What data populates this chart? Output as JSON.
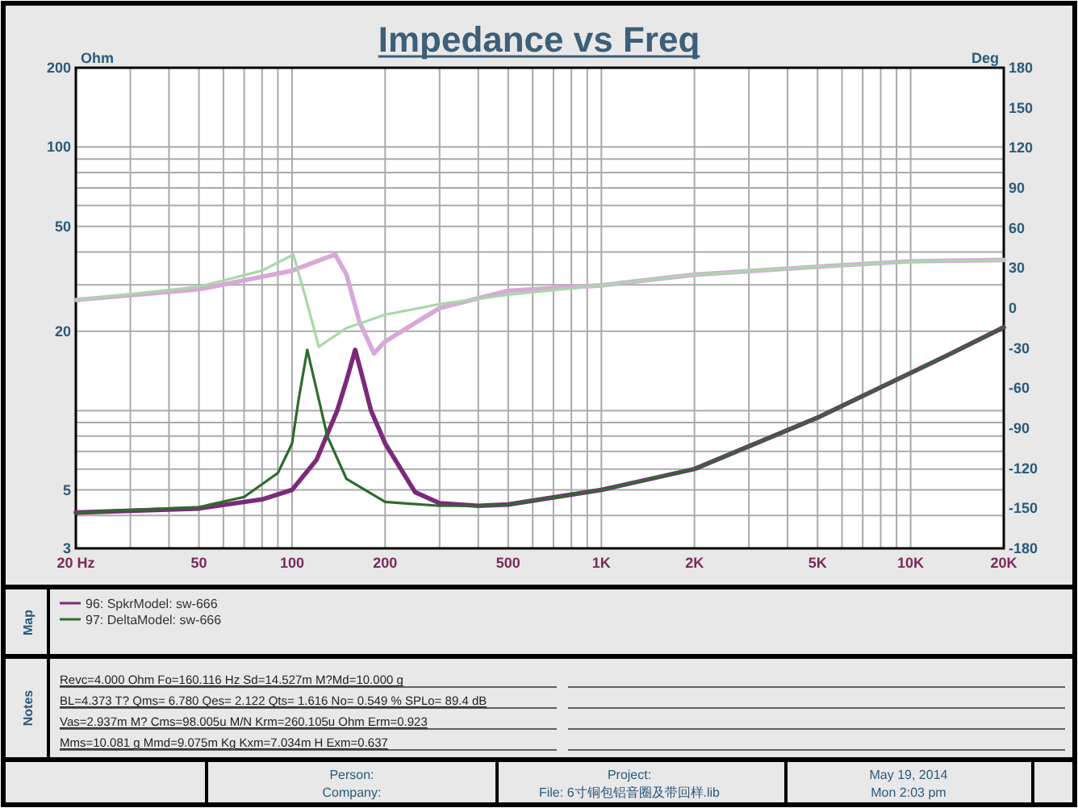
{
  "chart_data": {
    "type": "line",
    "title": "Impedance vs Freq",
    "ylabel": "Ohm",
    "y2label": "Deg",
    "legend_title": "Map",
    "log": "xy",
    "grid": true,
    "legend": "bottom",
    "xlim": [
      20,
      20000
    ],
    "ylim": [
      3,
      200
    ],
    "y2lim": [
      -180,
      180
    ],
    "xticks": [
      {
        "value": 20,
        "label": "20  Hz"
      },
      {
        "value": 30,
        "label": null
      },
      {
        "value": 40,
        "label": null
      },
      50,
      {
        "value": 60,
        "label": null
      },
      {
        "value": 70,
        "label": null
      },
      {
        "value": 80,
        "label": null
      },
      {
        "value": 90,
        "label": null
      },
      100,
      200,
      {
        "value": 300,
        "label": null
      },
      {
        "value": 400,
        "label": null
      },
      500,
      {
        "value": 600,
        "label": null
      },
      {
        "value": 700,
        "label": null
      },
      {
        "value": 800,
        "label": null
      },
      {
        "value": 900,
        "label": null
      },
      {
        "value": 1000,
        "label": "1K"
      },
      {
        "value": 2000,
        "label": "2K"
      },
      {
        "value": 3000,
        "label": null
      },
      {
        "value": 4000,
        "label": null
      },
      {
        "value": 5000,
        "label": "5K"
      },
      {
        "value": 6000,
        "label": null
      },
      {
        "value": 7000,
        "label": null
      },
      {
        "value": 8000,
        "label": null
      },
      {
        "value": 9000,
        "label": null
      },
      {
        "value": 10000,
        "label": "10K"
      },
      {
        "value": 20000,
        "label": "20K"
      }
    ],
    "yticks": [
      3,
      {
        "value": 4,
        "label": null
      },
      5,
      {
        "value": 6,
        "label": null
      },
      {
        "value": 7,
        "label": null
      },
      {
        "value": 8,
        "label": null
      },
      {
        "value": 9,
        "label": null
      },
      {
        "value": 10,
        "label": null
      },
      20,
      {
        "value": 30,
        "label": null
      },
      {
        "value": 40,
        "label": null
      },
      50,
      {
        "value": 60,
        "label": null
      },
      {
        "value": 70,
        "label": null
      },
      {
        "value": 80,
        "label": null
      },
      {
        "value": 90,
        "label": null
      },
      100,
      200
    ],
    "y2ticks": [
      -180,
      -150,
      -120,
      -90,
      -60,
      -30,
      0,
      30,
      60,
      90,
      120,
      150,
      180
    ],
    "series": [
      {
        "name": "96: SpkrModel: sw-666",
        "color": "#7b2a7b",
        "x": [
          20,
          50,
          80,
          100,
          120,
          140,
          150,
          160,
          170,
          180,
          200,
          250,
          300,
          400,
          500,
          1000,
          2000,
          5000,
          13000,
          20000
        ],
        "values": [
          4.1,
          4.25,
          4.6,
          5.0,
          6.5,
          10,
          13,
          17,
          13,
          10,
          7.5,
          4.9,
          4.45,
          4.35,
          4.4,
          5.0,
          6.0,
          9.4,
          16.1,
          20.7
        ]
      },
      {
        "name": "97: DeltaModel: sw-666",
        "color": "#2e6b2e",
        "x": [
          20,
          50,
          70,
          90,
          100,
          105,
          112,
          120,
          130,
          150,
          200,
          300,
          400,
          500,
          1000,
          2000,
          5000,
          13000,
          20000
        ],
        "values": [
          4.1,
          4.3,
          4.7,
          5.8,
          7.5,
          11,
          17,
          12,
          8,
          5.5,
          4.5,
          4.35,
          4.35,
          4.4,
          5.0,
          6.0,
          9.4,
          16.1,
          20.7
        ]
      },
      {
        "color": "#d8a8d8",
        "axis": "y2",
        "x": [
          20,
          50,
          100,
          130,
          138,
          150,
          165,
          184,
          200,
          300,
          500,
          1000,
          2000,
          5000,
          10000,
          20000
        ],
        "values": [
          6,
          14,
          28,
          38,
          40,
          25,
          -10,
          -34,
          -25,
          0,
          13,
          17,
          25,
          31,
          35,
          36
        ]
      },
      {
        "color": "#a8d8a8",
        "axis": "y2",
        "x": [
          20,
          50,
          80,
          101,
          110,
          122,
          150,
          200,
          300,
          500,
          1000,
          2000,
          5000,
          10000,
          20000
        ],
        "values": [
          6,
          16,
          28,
          40,
          10,
          -29,
          -15,
          -5,
          3,
          10,
          17,
          25,
          31,
          35,
          36
        ]
      }
    ],
    "annotations": [
      "Notes",
      "Revc=4.000 Ohm  Fo=160.116 Hz  Sd=14.527m M?Md=10.000 g",
      "BL=4.373 T?  Qms= 6.780  Qes= 2.122  Qts= 1.616  No= 0.549 %  SPLo= 89.4 dB",
      "Vas=2.937m M?  Cms=98.005u M/N  Krm=260.105u Ohm  Erm=0.923",
      "Mms=10.081 g  Mmd=9.075m Kg  Kxm=7.034m H  Exm=0.637",
      "Person:",
      "Company:",
      "Project:",
      "File: 6寸铜包铝音圈及带回样.lib",
      "May 19, 2014",
      "Mon  2:03 pm"
    ]
  }
}
